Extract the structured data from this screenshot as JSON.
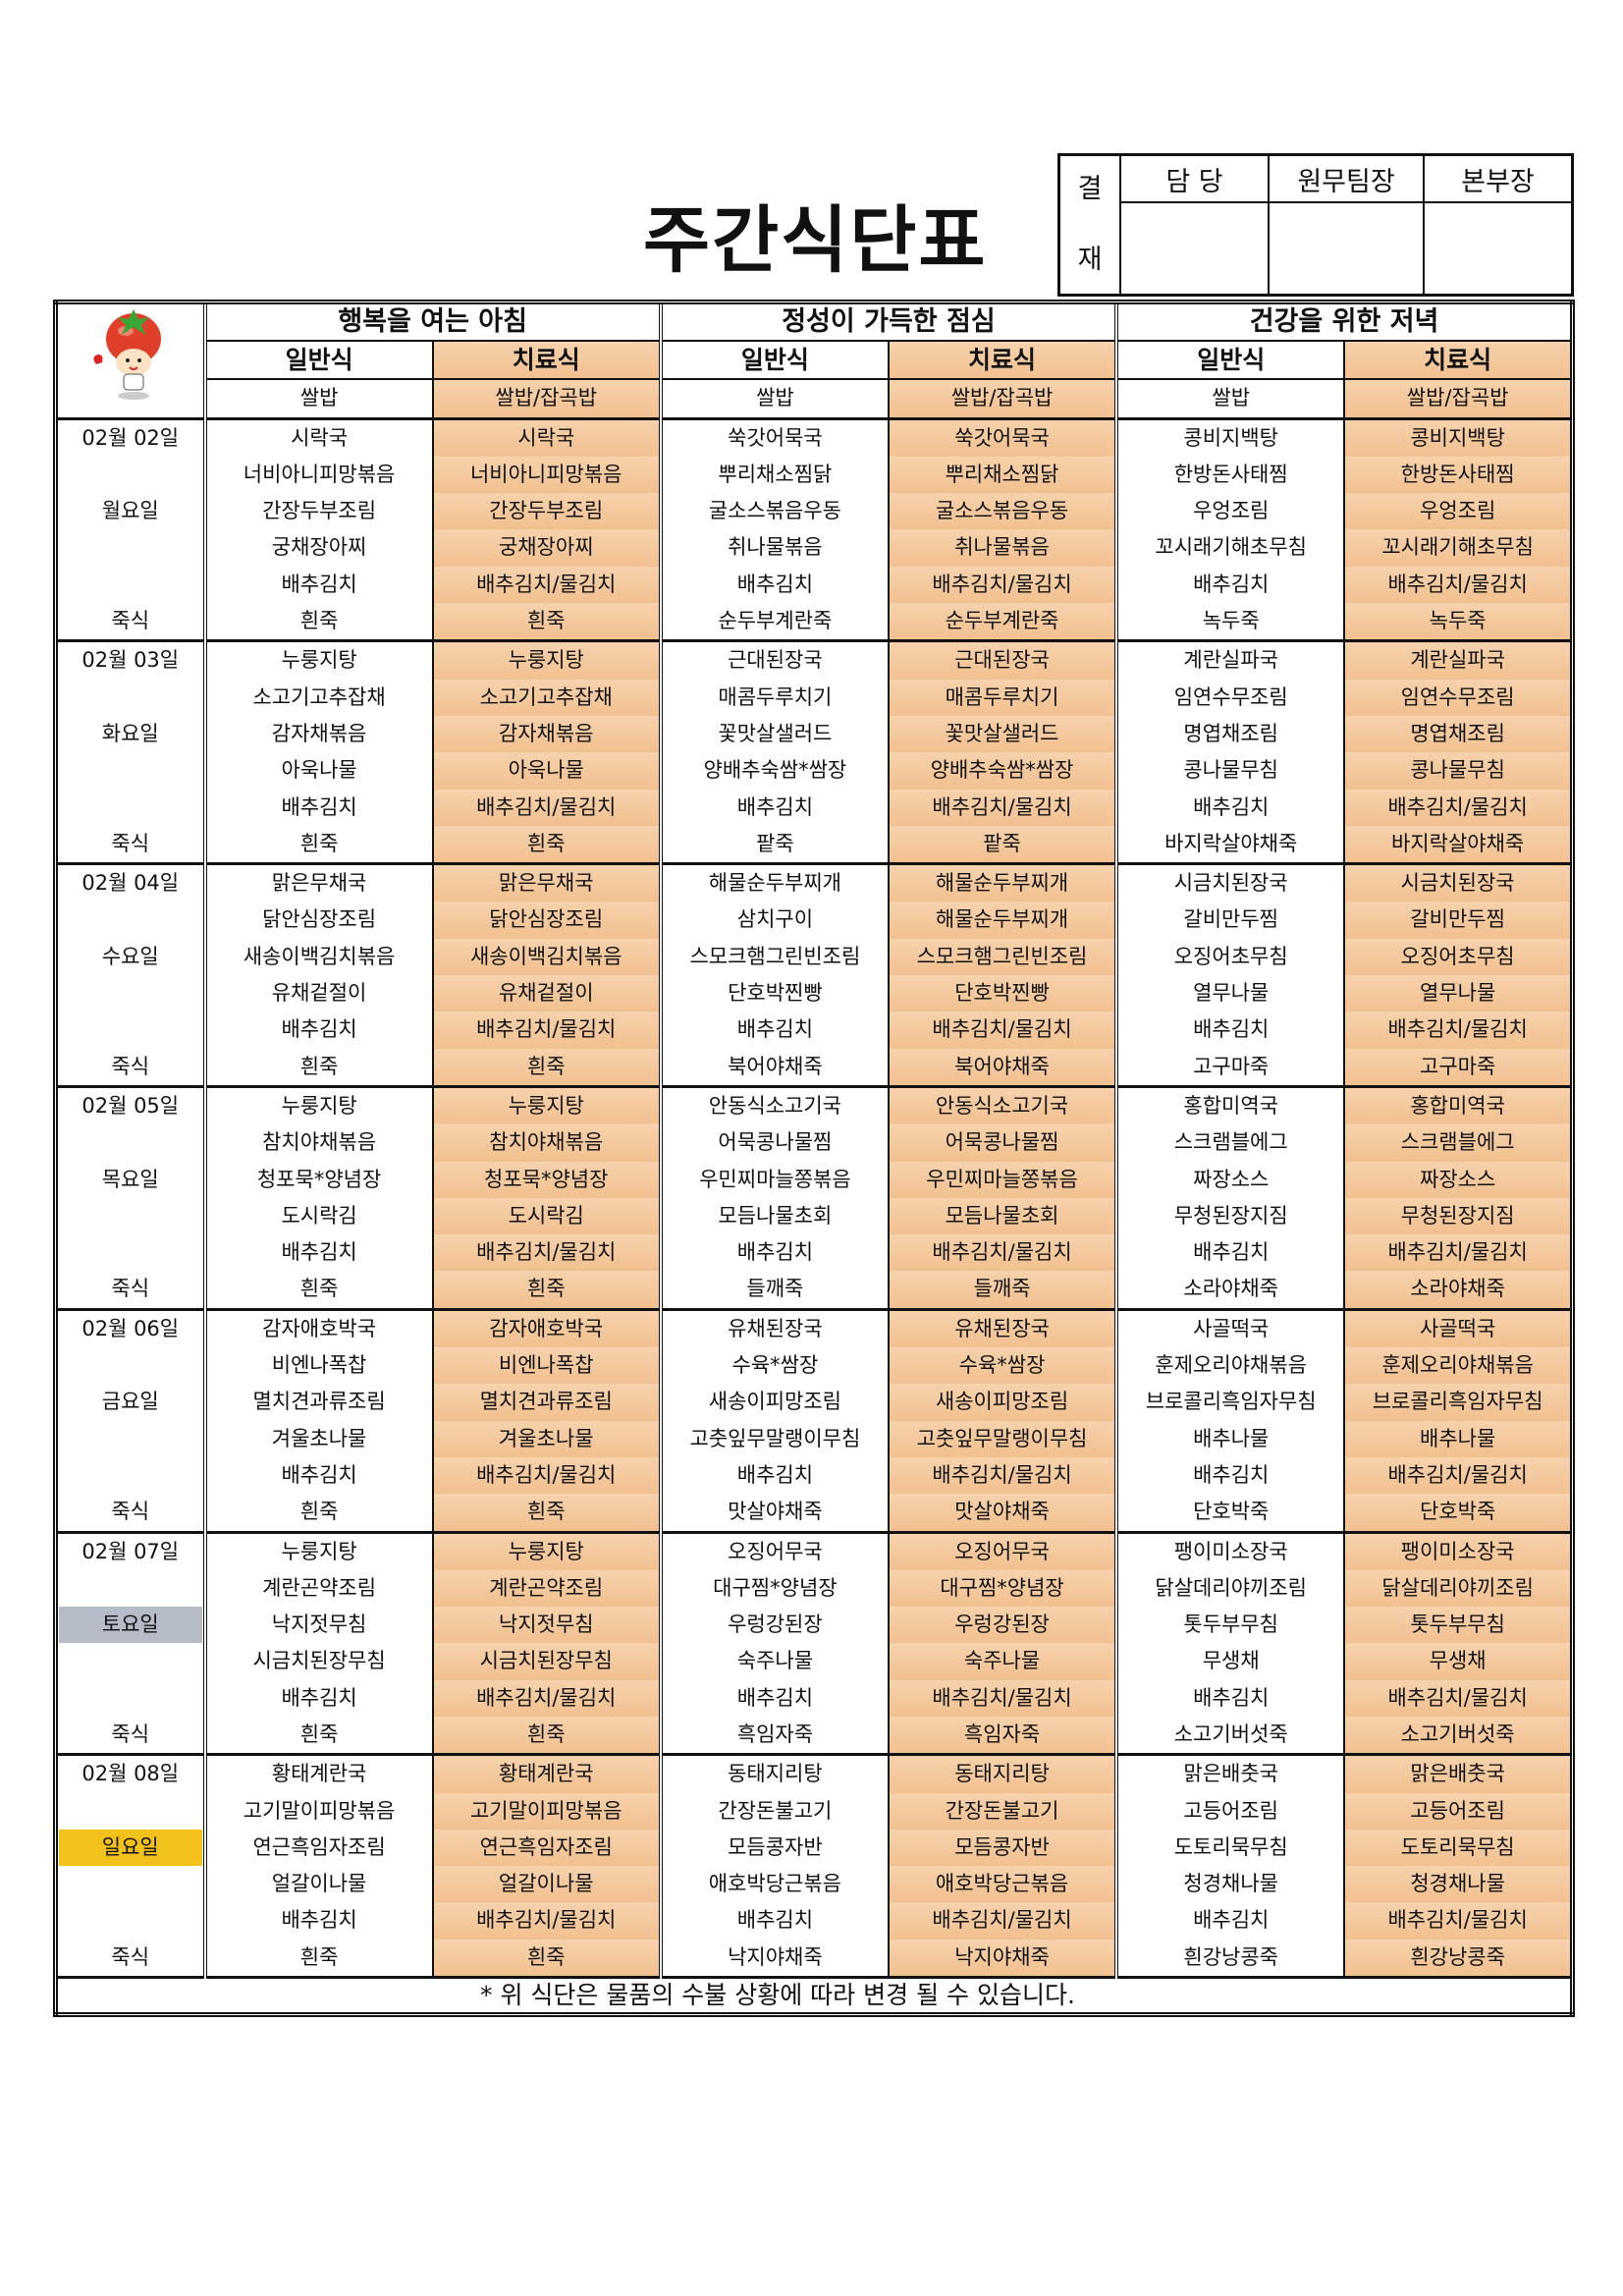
{
  "title": "주간식단표",
  "approval": {
    "label_top": "결",
    "label_bottom": "재",
    "columns": [
      "담 당",
      "원무팀장",
      "본부장"
    ]
  },
  "colors": {
    "therapy_bg": "#f3c79a",
    "saturday_bg": "#b5bcc8",
    "sunday_bg": "#f2c21a"
  },
  "logo": "tomato-mascot-icon",
  "meals": [
    {
      "title": "행복을 여는 아침",
      "general": "일반식",
      "therapy": "치료식",
      "rice_general": "쌀밥",
      "rice_therapy": "쌀밥/잡곡밥"
    },
    {
      "title": "정성이 가득한 점심",
      "general": "일반식",
      "therapy": "치료식",
      "rice_general": "쌀밥",
      "rice_therapy": "쌀밥/잡곡밥"
    },
    {
      "title": "건강을 위한 저녁",
      "general": "일반식",
      "therapy": "치료식",
      "rice_general": "쌀밥",
      "rice_therapy": "쌀밥/잡곡밥"
    }
  ],
  "porridge_label": "죽식",
  "days": [
    {
      "date": "02월 02일",
      "weekday": "월요일",
      "type": "weekday",
      "menus": [
        [
          "시락국",
          "너비아니피망볶음",
          "간장두부조림",
          "궁채장아찌",
          "배추김치",
          "흰죽"
        ],
        [
          "시락국",
          "너비아니피망볶음",
          "간장두부조림",
          "궁채장아찌",
          "배추김치/물김치",
          "흰죽"
        ],
        [
          "쑥갓어묵국",
          "뿌리채소찜닭",
          "굴소스볶음우동",
          "취나물볶음",
          "배추김치",
          "순두부계란죽"
        ],
        [
          "쑥갓어묵국",
          "뿌리채소찜닭",
          "굴소스볶음우동",
          "취나물볶음",
          "배추김치/물김치",
          "순두부계란죽"
        ],
        [
          "콩비지백탕",
          "한방돈사태찜",
          "우엉조림",
          "꼬시래기해초무침",
          "배추김치",
          "녹두죽"
        ],
        [
          "콩비지백탕",
          "한방돈사태찜",
          "우엉조림",
          "꼬시래기해초무침",
          "배추김치/물김치",
          "녹두죽"
        ]
      ]
    },
    {
      "date": "02월 03일",
      "weekday": "화요일",
      "type": "weekday",
      "menus": [
        [
          "누룽지탕",
          "소고기고추잡채",
          "감자채볶음",
          "아욱나물",
          "배추김치",
          "흰죽"
        ],
        [
          "누룽지탕",
          "소고기고추잡채",
          "감자채볶음",
          "아욱나물",
          "배추김치/물김치",
          "흰죽"
        ],
        [
          "근대된장국",
          "매콤두루치기",
          "꽃맛살샐러드",
          "양배추숙쌈*쌈장",
          "배추김치",
          "팥죽"
        ],
        [
          "근대된장국",
          "매콤두루치기",
          "꽃맛살샐러드",
          "양배추숙쌈*쌈장",
          "배추김치/물김치",
          "팥죽"
        ],
        [
          "계란실파국",
          "임연수무조림",
          "명엽채조림",
          "콩나물무침",
          "배추김치",
          "바지락살야채죽"
        ],
        [
          "계란실파국",
          "임연수무조림",
          "명엽채조림",
          "콩나물무침",
          "배추김치/물김치",
          "바지락살야채죽"
        ]
      ]
    },
    {
      "date": "02월 04일",
      "weekday": "수요일",
      "type": "weekday",
      "menus": [
        [
          "맑은무채국",
          "닭안심장조림",
          "새송이백김치볶음",
          "유채겉절이",
          "배추김치",
          "흰죽"
        ],
        [
          "맑은무채국",
          "닭안심장조림",
          "새송이백김치볶음",
          "유채겉절이",
          "배추김치/물김치",
          "흰죽"
        ],
        [
          "해물순두부찌개",
          "삼치구이",
          "스모크햄그린빈조림",
          "단호박찐빵",
          "배추김치",
          "북어야채죽"
        ],
        [
          "해물순두부찌개",
          "해물순두부찌개",
          "스모크햄그린빈조림",
          "단호박찐빵",
          "배추김치/물김치",
          "북어야채죽"
        ],
        [
          "시금치된장국",
          "갈비만두찜",
          "오징어초무침",
          "열무나물",
          "배추김치",
          "고구마죽"
        ],
        [
          "시금치된장국",
          "갈비만두찜",
          "오징어초무침",
          "열무나물",
          "배추김치/물김치",
          "고구마죽"
        ]
      ]
    },
    {
      "date": "02월 05일",
      "weekday": "목요일",
      "type": "weekday",
      "menus": [
        [
          "누룽지탕",
          "참치야채볶음",
          "청포묵*양념장",
          "도시락김",
          "배추김치",
          "흰죽"
        ],
        [
          "누룽지탕",
          "참치야채볶음",
          "청포묵*양념장",
          "도시락김",
          "배추김치/물김치",
          "흰죽"
        ],
        [
          "안동식소고기국",
          "어묵콩나물찜",
          "우민찌마늘쫑볶음",
          "모듬나물초회",
          "배추김치",
          "들깨죽"
        ],
        [
          "안동식소고기국",
          "어묵콩나물찜",
          "우민찌마늘쫑볶음",
          "모듬나물초회",
          "배추김치/물김치",
          "들깨죽"
        ],
        [
          "홍합미역국",
          "스크램블에그",
          "짜장소스",
          "무청된장지짐",
          "배추김치",
          "소라야채죽"
        ],
        [
          "홍합미역국",
          "스크램블에그",
          "짜장소스",
          "무청된장지짐",
          "배추김치/물김치",
          "소라야채죽"
        ]
      ]
    },
    {
      "date": "02월 06일",
      "weekday": "금요일",
      "type": "weekday",
      "menus": [
        [
          "감자애호박국",
          "비엔나폭찹",
          "멸치견과류조림",
          "겨울초나물",
          "배추김치",
          "흰죽"
        ],
        [
          "감자애호박국",
          "비엔나폭찹",
          "멸치견과류조림",
          "겨울초나물",
          "배추김치/물김치",
          "흰죽"
        ],
        [
          "유채된장국",
          "수육*쌈장",
          "새송이피망조림",
          "고춧잎무말랭이무침",
          "배추김치",
          "맛살야채죽"
        ],
        [
          "유채된장국",
          "수육*쌈장",
          "새송이피망조림",
          "고춧잎무말랭이무침",
          "배추김치/물김치",
          "맛살야채죽"
        ],
        [
          "사골떡국",
          "훈제오리야채볶음",
          "브로콜리흑임자무침",
          "배추나물",
          "배추김치",
          "단호박죽"
        ],
        [
          "사골떡국",
          "훈제오리야채볶음",
          "브로콜리흑임자무침",
          "배추나물",
          "배추김치/물김치",
          "단호박죽"
        ]
      ]
    },
    {
      "date": "02월 07일",
      "weekday": "토요일",
      "type": "saturday",
      "menus": [
        [
          "누룽지탕",
          "계란곤약조림",
          "낙지젓무침",
          "시금치된장무침",
          "배추김치",
          "흰죽"
        ],
        [
          "누룽지탕",
          "계란곤약조림",
          "낙지젓무침",
          "시금치된장무침",
          "배추김치/물김치",
          "흰죽"
        ],
        [
          "오징어무국",
          "대구찜*양념장",
          "우렁강된장",
          "숙주나물",
          "배추김치",
          "흑임자죽"
        ],
        [
          "오징어무국",
          "대구찜*양념장",
          "우렁강된장",
          "숙주나물",
          "배추김치/물김치",
          "흑임자죽"
        ],
        [
          "팽이미소장국",
          "닭살데리야끼조림",
          "톳두부무침",
          "무생채",
          "배추김치",
          "소고기버섯죽"
        ],
        [
          "팽이미소장국",
          "닭살데리야끼조림",
          "톳두부무침",
          "무생채",
          "배추김치/물김치",
          "소고기버섯죽"
        ]
      ]
    },
    {
      "date": "02월 08일",
      "weekday": "일요일",
      "type": "sunday",
      "menus": [
        [
          "황태계란국",
          "고기말이피망볶음",
          "연근흑임자조림",
          "얼갈이나물",
          "배추김치",
          "흰죽"
        ],
        [
          "황태계란국",
          "고기말이피망볶음",
          "연근흑임자조림",
          "얼갈이나물",
          "배추김치/물김치",
          "흰죽"
        ],
        [
          "동태지리탕",
          "간장돈불고기",
          "모듬콩자반",
          "애호박당근볶음",
          "배추김치",
          "낙지야채죽"
        ],
        [
          "동태지리탕",
          "간장돈불고기",
          "모듬콩자반",
          "애호박당근볶음",
          "배추김치/물김치",
          "낙지야채죽"
        ],
        [
          "맑은배춧국",
          "고등어조림",
          "도토리묵무침",
          "청경채나물",
          "배추김치",
          "흰강낭콩죽"
        ],
        [
          "맑은배춧국",
          "고등어조림",
          "도토리묵무침",
          "청경채나물",
          "배추김치/물김치",
          "흰강낭콩죽"
        ]
      ]
    }
  ],
  "footer_note": "* 위 식단은 물품의 수불 상황에 따라 변경 될 수 있습니다."
}
